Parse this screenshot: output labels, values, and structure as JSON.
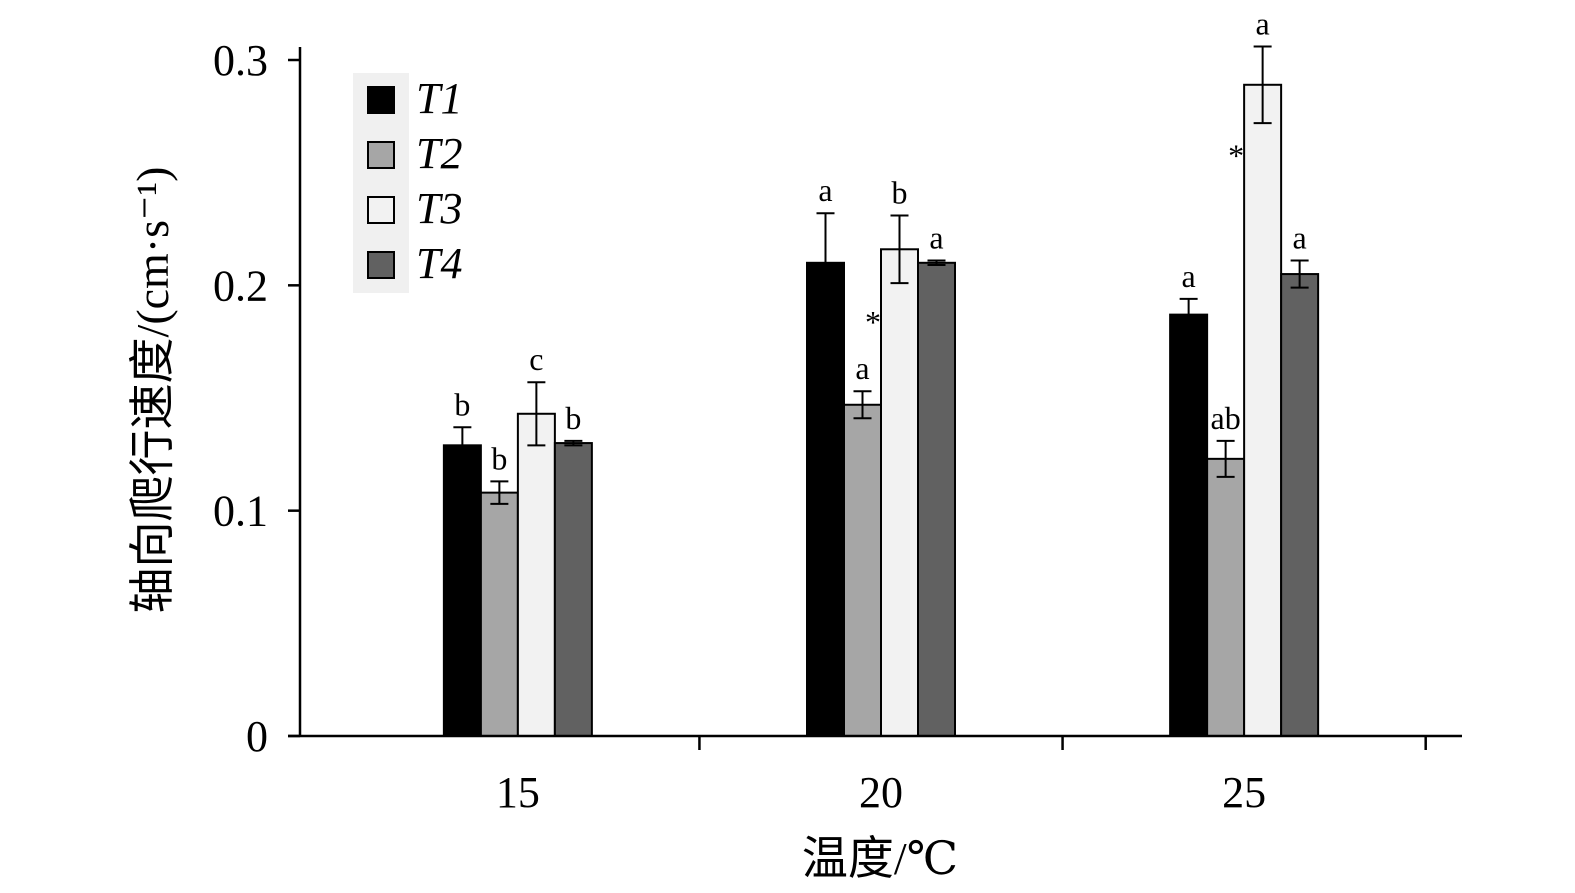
{
  "chart_data": {
    "type": "bar",
    "xlabel": "温度/℃",
    "ylabel": "轴向爬行速度/(cm·s⁻¹)",
    "ylim": [
      0,
      0.3
    ],
    "yticks": [
      "0",
      "0.1",
      "0.2",
      "0.3"
    ],
    "categories": [
      "15",
      "20",
      "25"
    ],
    "legend_position": "top-left",
    "grid": false,
    "series": [
      {
        "name": "T1",
        "color": "#000000",
        "values": [
          0.129,
          0.21,
          0.187
        ],
        "errors": [
          0.008,
          0.022,
          0.007
        ],
        "labels": [
          "b",
          "a",
          "a"
        ]
      },
      {
        "name": "T2",
        "color": "#a6a6a6",
        "values": [
          0.108,
          0.147,
          0.123
        ],
        "errors": [
          0.005,
          0.006,
          0.008
        ],
        "labels": [
          "b",
          "a",
          "ab"
        ]
      },
      {
        "name": "T3",
        "color": "#f2f2f2",
        "values": [
          0.143,
          0.216,
          0.289
        ],
        "errors": [
          0.014,
          0.015,
          0.017
        ],
        "labels": [
          "c",
          "b",
          "a"
        ]
      },
      {
        "name": "T4",
        "color": "#616161",
        "values": [
          0.13,
          0.21,
          0.205
        ],
        "errors": [
          0.001,
          0.001,
          0.006
        ],
        "labels": [
          "b",
          "a",
          "a"
        ]
      }
    ],
    "annotations": [
      {
        "text": "*",
        "category": "20"
      },
      {
        "text": "*",
        "category": "25"
      }
    ]
  }
}
